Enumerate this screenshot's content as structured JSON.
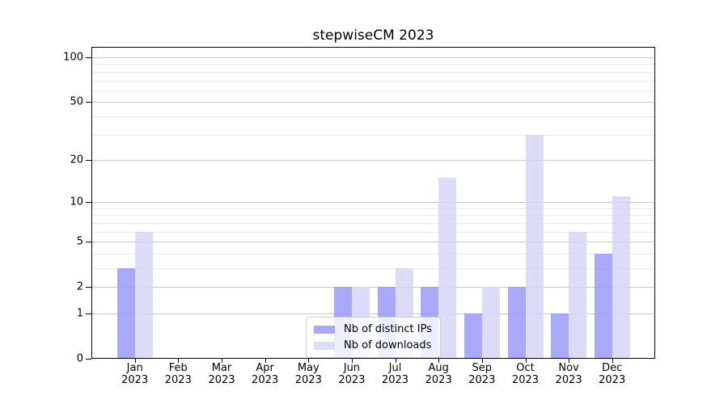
{
  "title": "stepwiseCM 2023",
  "chart_data": {
    "type": "bar",
    "title": "stepwiseCM 2023",
    "categories": [
      "Jan",
      "Feb",
      "Mar",
      "Apr",
      "May",
      "Jun",
      "Jul",
      "Aug",
      "Sep",
      "Oct",
      "Nov",
      "Dec"
    ],
    "year": "2023",
    "series": [
      {
        "name": "Nb of distinct IPs",
        "values": [
          3,
          0,
          0,
          0,
          0,
          2,
          2,
          2,
          1,
          2,
          1,
          4
        ],
        "color": "#9494f7cc"
      },
      {
        "name": "Nb of downloads",
        "values": [
          6,
          0,
          0,
          0,
          0,
          2,
          3,
          15,
          2,
          30,
          6,
          11
        ],
        "color": "#d3d3f8cc"
      }
    ],
    "xlabel": "",
    "ylabel": "",
    "y_scale": "log10(value+1)",
    "ylim": [
      0,
      116
    ],
    "y_major_ticks": [
      0,
      1,
      2,
      5,
      10,
      20,
      50,
      100
    ],
    "y_tick_labels": [
      "0",
      "1",
      "2",
      "5",
      "10",
      "20",
      "50",
      "100"
    ],
    "y_minor_gridlines": [
      3,
      4,
      6,
      7,
      8,
      9,
      30,
      40,
      60,
      70,
      80,
      90
    ],
    "grid": "horizontal",
    "legend_position": "lower-center-inside"
  },
  "colors": {
    "bar_distinct_ips": "#9494f7cc",
    "bar_downloads": "#d3d3f8cc",
    "grid_major": "#c6c6c6",
    "grid_minor": "#ebebeb",
    "spine": "#000000",
    "legend_border": "#cccccc"
  }
}
